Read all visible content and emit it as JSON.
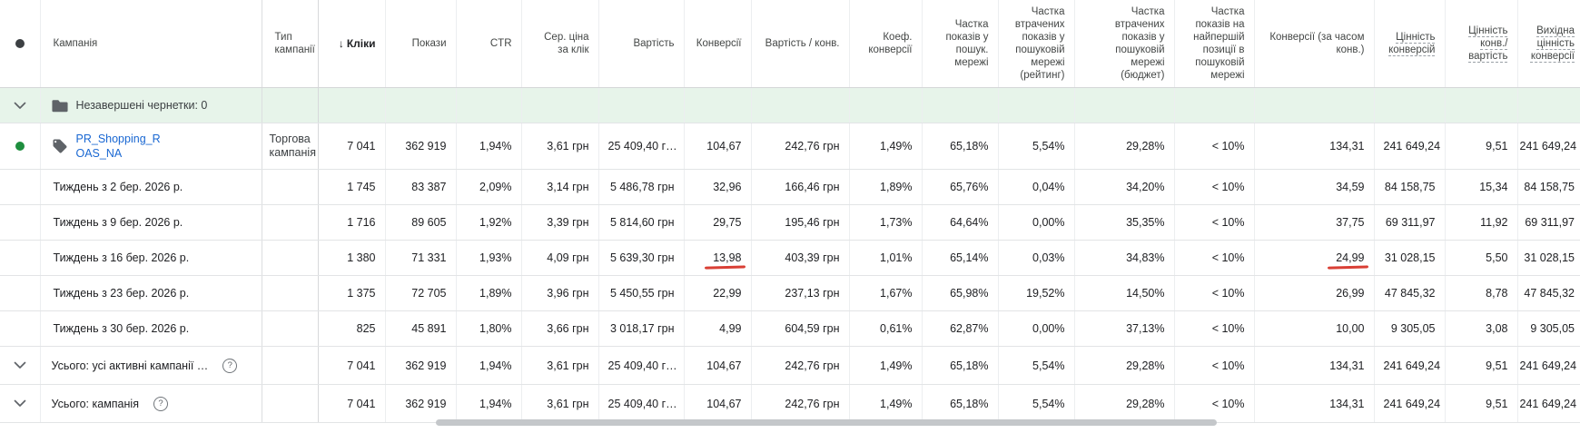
{
  "colors": {
    "link_blue": "#1967d2",
    "status_dot_green": "#1e8e3e",
    "drafts_row_bg": "#e7f4ea",
    "annotation_red": "#d93f35"
  },
  "icons": {
    "help": "?",
    "sort_desc": "↓"
  },
  "table": {
    "sort_indicator": "↓",
    "columns": [
      {
        "id": "status",
        "label": ""
      },
      {
        "id": "campaign",
        "label": "Кампанія",
        "align": "left"
      },
      {
        "id": "type",
        "label": "Тип\nкампанії",
        "align": "left"
      },
      {
        "id": "clicks",
        "label": "Кліки",
        "sorted": true
      },
      {
        "id": "impressions",
        "label": "Покази"
      },
      {
        "id": "ctr",
        "label": "CTR"
      },
      {
        "id": "avg_cpc",
        "label": "Сер. ціна\nза клік"
      },
      {
        "id": "cost",
        "label": "Вартість"
      },
      {
        "id": "conversions",
        "label": "Конверсії"
      },
      {
        "id": "cost_per_conv",
        "label": "Вартість / конв."
      },
      {
        "id": "conv_rate",
        "label": "Коеф.\nконверсії"
      },
      {
        "id": "search_impr_share",
        "label": "Частка\nпоказів у\nпошук.\nмережі"
      },
      {
        "id": "search_lost_is_rank",
        "label": "Частка\nвтрачених\nпоказів у\nпошуковій\nмережі\n(рейтинг)"
      },
      {
        "id": "search_lost_is_budget",
        "label": "Частка\nвтрачених\nпоказів у\nпошуковій\nмережі\n(бюджет)"
      },
      {
        "id": "search_abs_top_is",
        "label": "Частка\nпоказів на\nнайпершій\nпозиції в\nпошуковій\nмережі"
      },
      {
        "id": "conv_by_time",
        "label": "Конверсії (за часом\nконв.)"
      },
      {
        "id": "conv_value",
        "label": "Цінність\nконверсій",
        "dashed": true
      },
      {
        "id": "conv_value_per_cost",
        "label": "Цінність\nконв./\nвартість",
        "dashed": true
      },
      {
        "id": "all_conv_value",
        "label": "Вихідна\nцінність\nконверсії",
        "dashed": true
      }
    ],
    "rows": [
      {
        "kind": "drafts",
        "chevron": true,
        "icon": "folder",
        "label": "Незавершені чернетки: 0",
        "type": "",
        "values": [
          "",
          "",
          "",
          "",
          "",
          "",
          "",
          "",
          "",
          "",
          "",
          "",
          "",
          "",
          "",
          ""
        ]
      },
      {
        "kind": "campaign",
        "dot": true,
        "icon": "shopping-tag",
        "label": "PR_Shopping_R\nOAS_NA",
        "type": "Торгова кампанія",
        "values": [
          "7 041",
          "362 919",
          "1,94%",
          "3,61 грн",
          "25 409,40 г…",
          "104,67",
          "242,76 грн",
          "1,49%",
          "65,18%",
          "5,54%",
          "29,28%",
          "< 10%",
          "134,31",
          "241 649,24",
          "9,51",
          "241 649,24"
        ]
      },
      {
        "kind": "week",
        "label": "Тиждень з 2 бер. 2026 р.",
        "type": "",
        "values": [
          "1 745",
          "83 387",
          "2,09%",
          "3,14 грн",
          "5 486,78 грн",
          "32,96",
          "166,46 грн",
          "1,89%",
          "65,76%",
          "0,04%",
          "34,20%",
          "< 10%",
          "34,59",
          "84 158,75",
          "15,34",
          "84 158,75"
        ]
      },
      {
        "kind": "week",
        "label": "Тиждень з 9 бер. 2026 р.",
        "type": "",
        "values": [
          "1 716",
          "89 605",
          "1,92%",
          "3,39 грн",
          "5 814,60 грн",
          "29,75",
          "195,46 грн",
          "1,73%",
          "64,64%",
          "0,00%",
          "35,35%",
          "< 10%",
          "37,75",
          "69 311,97",
          "11,92",
          "69 311,97"
        ]
      },
      {
        "kind": "week",
        "label": "Тиждень з 16 бер. 2026 р.",
        "type": "",
        "values": [
          "1 380",
          "71 331",
          "1,93%",
          "4,09 грн",
          "5 639,30 грн",
          "13,98",
          "403,39 грн",
          "1,01%",
          "65,14%",
          "0,03%",
          "34,83%",
          "< 10%",
          "24,99",
          "31 028,15",
          "5,50",
          "31 028,15"
        ],
        "red_underline_value_indexes": [
          5,
          12
        ]
      },
      {
        "kind": "week",
        "label": "Тиждень з 23 бер. 2026 р.",
        "type": "",
        "values": [
          "1 375",
          "72 705",
          "1,89%",
          "3,96 грн",
          "5 450,55 грн",
          "22,99",
          "237,13 грн",
          "1,67%",
          "65,98%",
          "19,52%",
          "14,50%",
          "< 10%",
          "26,99",
          "47 845,32",
          "8,78",
          "47 845,32"
        ]
      },
      {
        "kind": "week",
        "label": "Тиждень з 30 бер. 2026 р.",
        "type": "",
        "values": [
          "825",
          "45 891",
          "1,80%",
          "3,66 грн",
          "3 018,17 грн",
          "4,99",
          "604,59 грн",
          "0,61%",
          "62,87%",
          "0,00%",
          "37,13%",
          "< 10%",
          "10,00",
          "9 305,05",
          "3,08",
          "9 305,05"
        ]
      },
      {
        "kind": "total",
        "chevron": true,
        "help": true,
        "label": "Усього: усі активні кампанії …",
        "type": "",
        "values": [
          "7 041",
          "362 919",
          "1,94%",
          "3,61 грн",
          "25 409,40 г…",
          "104,67",
          "242,76 грн",
          "1,49%",
          "65,18%",
          "5,54%",
          "29,28%",
          "< 10%",
          "134,31",
          "241 649,24",
          "9,51",
          "241 649,24"
        ]
      },
      {
        "kind": "total",
        "chevron": true,
        "help": true,
        "label": "Усього: кампанія",
        "type": "",
        "values": [
          "7 041",
          "362 919",
          "1,94%",
          "3,61 грн",
          "25 409,40 г…",
          "104,67",
          "242,76 грн",
          "1,49%",
          "65,18%",
          "5,54%",
          "29,28%",
          "< 10%",
          "134,31",
          "241 649,24",
          "9,51",
          "241 649,24"
        ]
      }
    ]
  }
}
